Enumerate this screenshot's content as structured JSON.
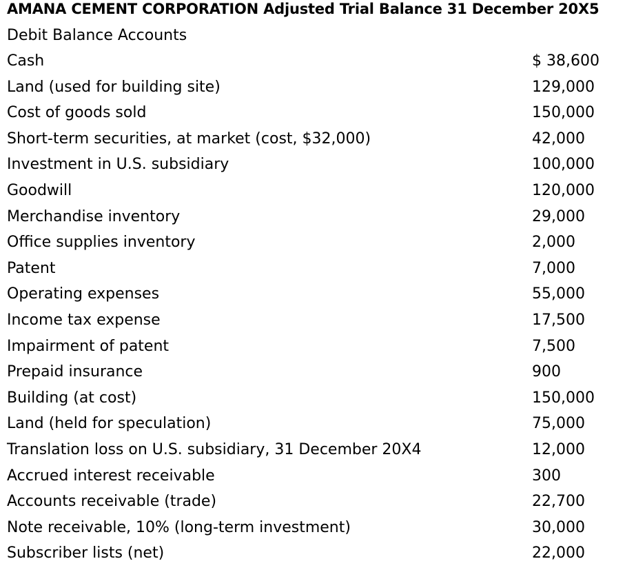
{
  "document": {
    "title": "AMANA CEMENT CORPORATION Adjusted Trial Balance 31 December 20X5",
    "subtitle": "Debit Balance Accounts"
  },
  "accounts": [
    {
      "name": "Cash",
      "amount": "$ 38,600"
    },
    {
      "name": "Land (used for building site)",
      "amount": "129,000"
    },
    {
      "name": "Cost of goods sold",
      "amount": "150,000"
    },
    {
      "name": "Short-term securities, at market (cost, $32,000)",
      "amount": "42,000"
    },
    {
      "name": "Investment in U.S. subsidiary",
      "amount": "100,000"
    },
    {
      "name": "Goodwill",
      "amount": "120,000"
    },
    {
      "name": "Merchandise inventory",
      "amount": "29,000"
    },
    {
      "name": "Office supplies inventory",
      "amount": "2,000"
    },
    {
      "name": "Patent",
      "amount": "7,000"
    },
    {
      "name": "Operating expenses",
      "amount": "55,000"
    },
    {
      "name": "Income tax expense",
      "amount": "17,500"
    },
    {
      "name": "Impairment of patent",
      "amount": "7,500"
    },
    {
      "name": "Prepaid insurance",
      "amount": "900"
    },
    {
      "name": "Building (at cost)",
      "amount": "150,000"
    },
    {
      "name": "Land (held for speculation)",
      "amount": "75,000"
    },
    {
      "name": "Translation loss on U.S. subsidiary, 31 December 20X4",
      "amount": "12,000"
    },
    {
      "name": "Accrued interest receivable",
      "amount": "300"
    },
    {
      "name": "Accounts receivable (trade)",
      "amount": "22,700"
    },
    {
      "name": "Note receivable, 10% (long-term investment)",
      "amount": "30,000"
    },
    {
      "name": "Subscriber lists (net)",
      "amount": "22,000"
    }
  ]
}
